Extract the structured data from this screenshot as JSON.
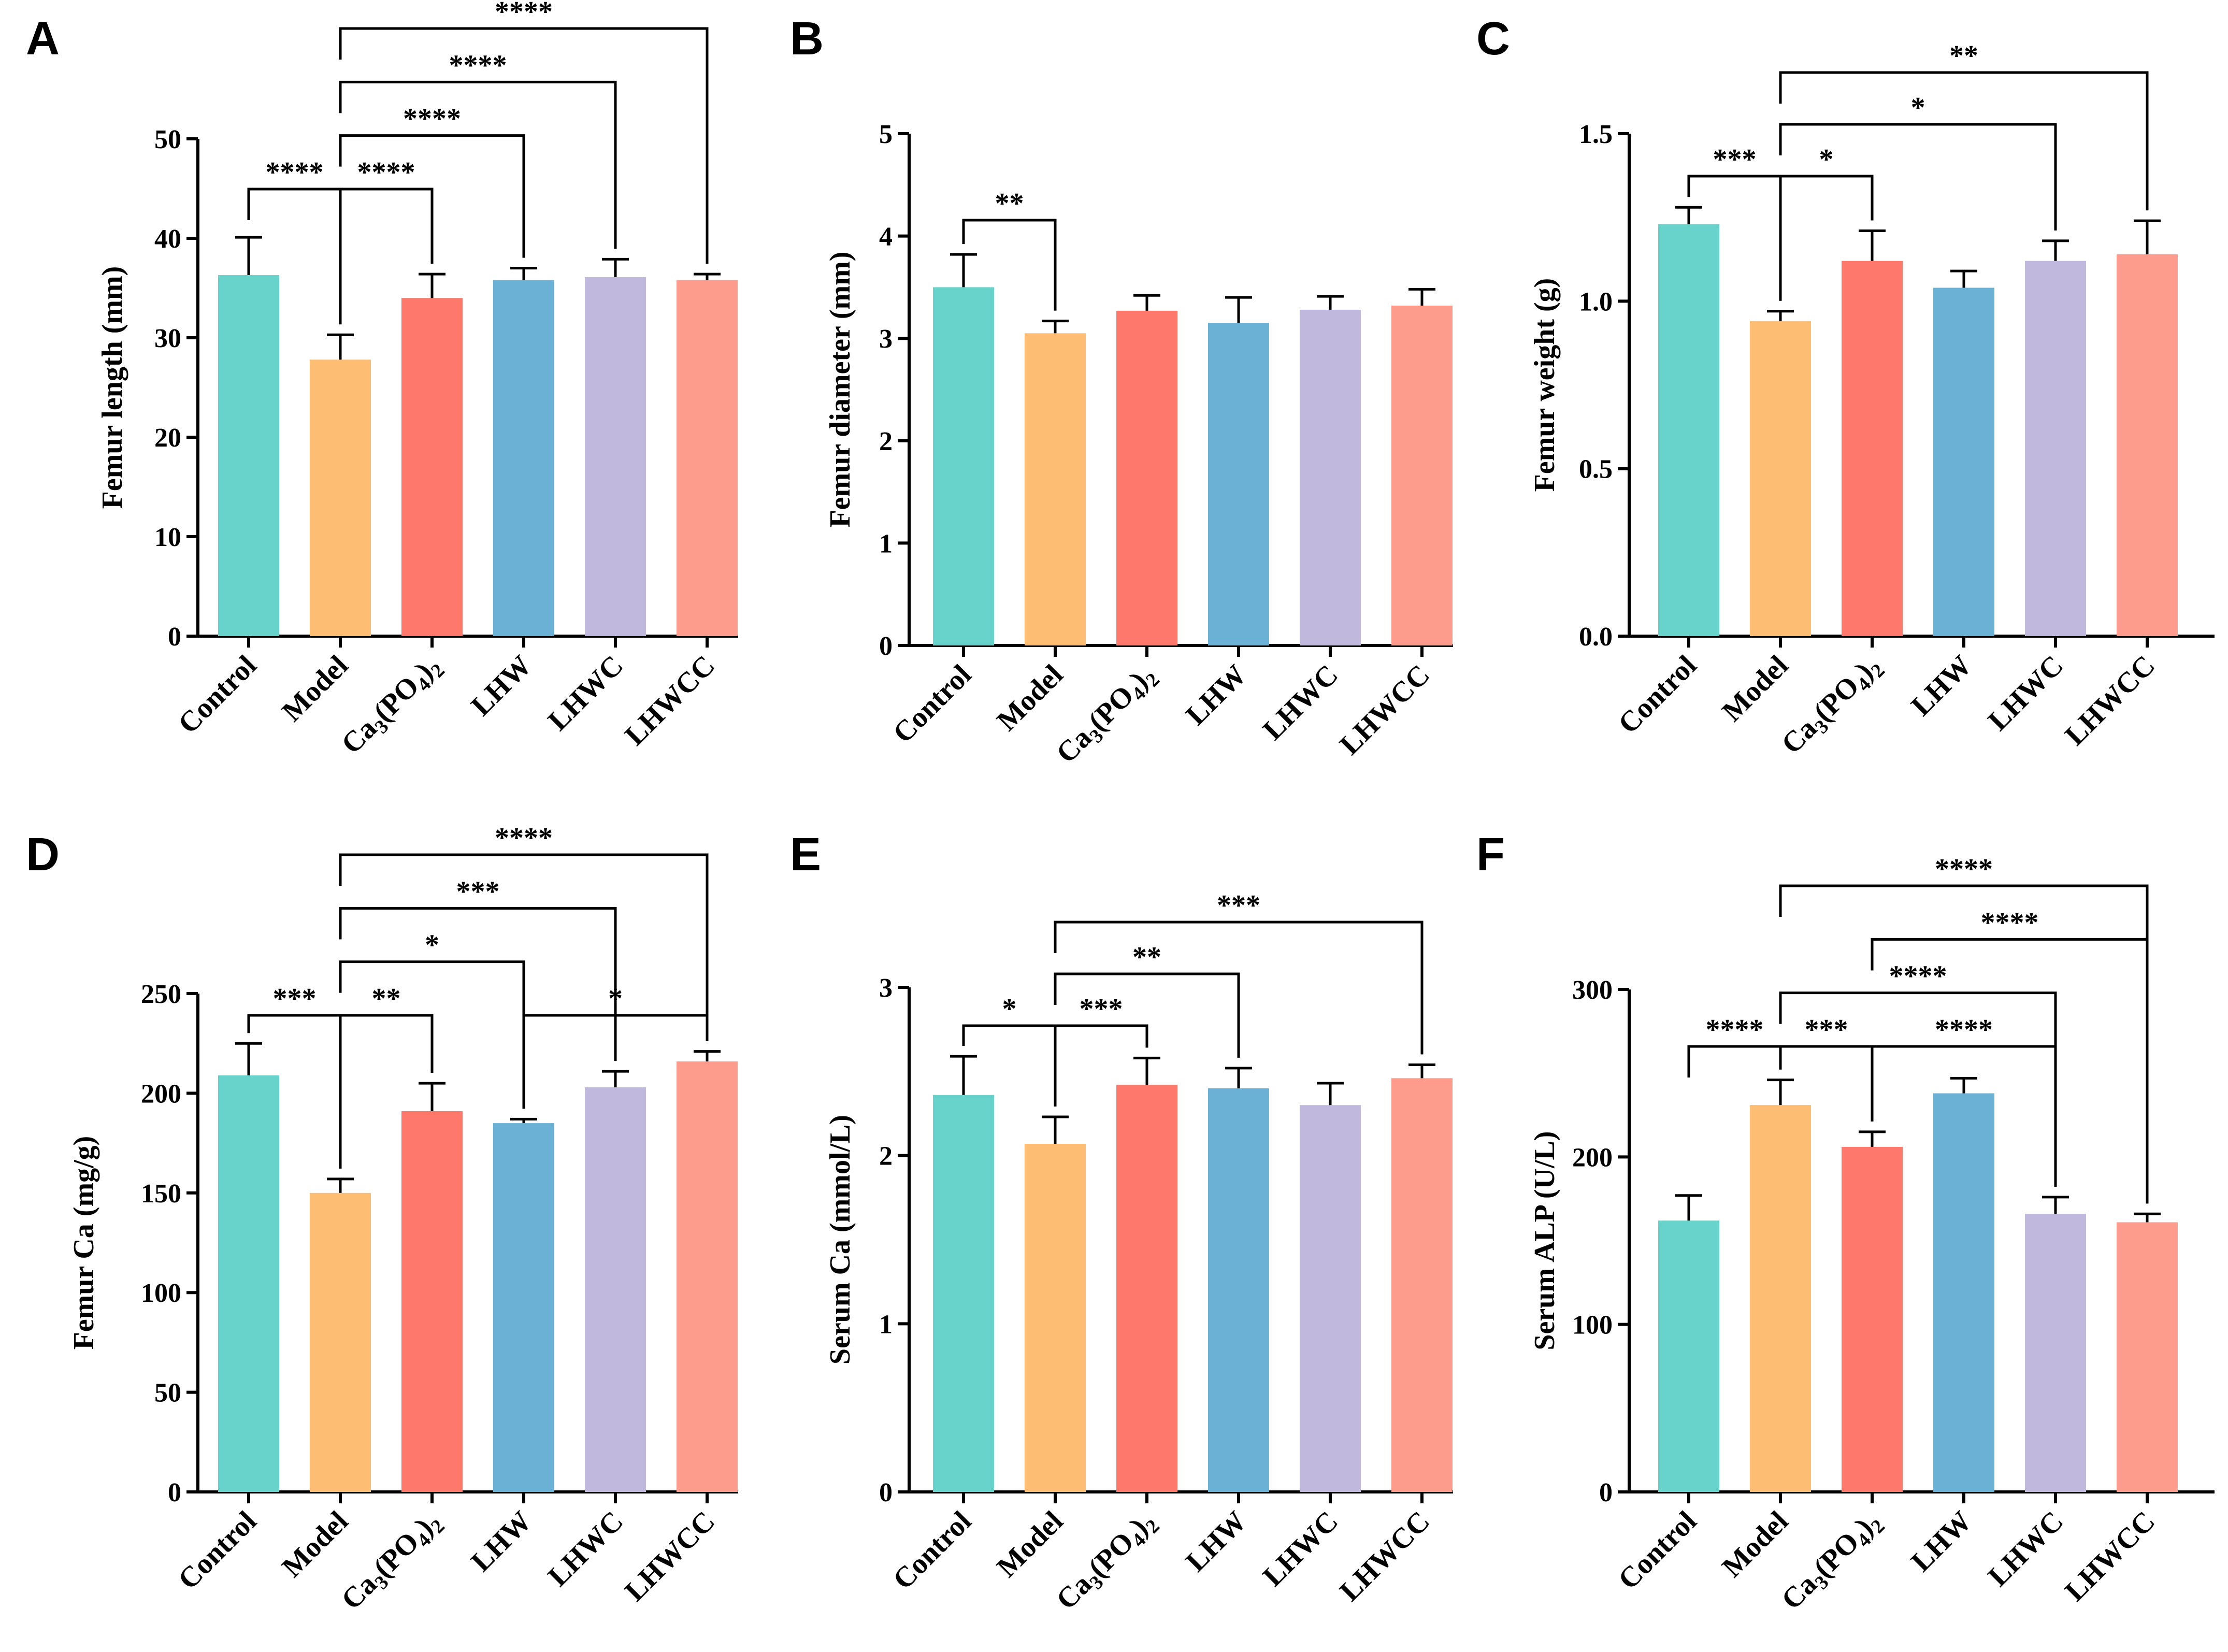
{
  "figure": {
    "layout": "2 rows x 3 columns of bar charts"
  },
  "chart_data": [
    {
      "panel": "A",
      "type": "bar",
      "categories": [
        "Control",
        "Model",
        "Ca3(PO4)2",
        "LHW",
        "LHWC",
        "LHWCC"
      ],
      "values": [
        36.3,
        27.8,
        34.0,
        35.8,
        36.1,
        35.8
      ],
      "errors": [
        3.8,
        2.5,
        2.4,
        1.2,
        1.8,
        0.6
      ],
      "colors": [
        "#68d3cb",
        "#fdbe74",
        "#fe796b",
        "#6ab1d5",
        "#c0b9dd",
        "#fd9b8d"
      ],
      "title": "",
      "xlabel": "",
      "ylabel": "Femur length (mm)",
      "ylim": [
        0,
        50
      ],
      "yticks": [
        0,
        10,
        20,
        30,
        40,
        50
      ],
      "significance": [
        {
          "from": 0,
          "to": 1,
          "label": "****"
        },
        {
          "from": 1,
          "to": 2,
          "label": "****"
        },
        {
          "from": 1,
          "to": 3,
          "label": "****"
        },
        {
          "from": 1,
          "to": 4,
          "label": "****"
        },
        {
          "from": 1,
          "to": 5,
          "label": "****"
        }
      ]
    },
    {
      "panel": "B",
      "type": "bar",
      "categories": [
        "Control",
        "Model",
        "Ca3(PO4)2",
        "LHW",
        "LHWC",
        "LHWCC"
      ],
      "values": [
        3.5,
        3.05,
        3.27,
        3.15,
        3.28,
        3.32
      ],
      "errors": [
        0.32,
        0.12,
        0.15,
        0.25,
        0.13,
        0.16
      ],
      "colors": [
        "#68d3cb",
        "#fdbe74",
        "#fe796b",
        "#6ab1d5",
        "#c0b9dd",
        "#fd9b8d"
      ],
      "title": "",
      "xlabel": "",
      "ylabel": "Femur diameter (mm)",
      "ylim": [
        0,
        5
      ],
      "yticks": [
        0,
        1,
        2,
        3,
        4,
        5
      ],
      "significance": [
        {
          "from": 0,
          "to": 1,
          "label": "**"
        }
      ]
    },
    {
      "panel": "C",
      "type": "bar",
      "categories": [
        "Control",
        "Model",
        "Ca3(PO4)2",
        "LHW",
        "LHWC",
        "LHWCC"
      ],
      "values": [
        1.23,
        0.94,
        1.12,
        1.04,
        1.12,
        1.14
      ],
      "errors": [
        0.05,
        0.03,
        0.09,
        0.05,
        0.06,
        0.1
      ],
      "colors": [
        "#68d3cb",
        "#fdbe74",
        "#fe796b",
        "#6ab1d5",
        "#c0b9dd",
        "#fd9b8d"
      ],
      "title": "",
      "xlabel": "",
      "ylabel": "Femur weight (g)",
      "ylim": [
        0,
        1.5
      ],
      "yticks": [
        0.0,
        0.5,
        1.0,
        1.5
      ],
      "ytick_labels": [
        "0.0",
        "0.5",
        "1.0",
        "1.5"
      ],
      "significance": [
        {
          "from": 0,
          "to": 1,
          "label": "***"
        },
        {
          "from": 1,
          "to": 2,
          "label": "*"
        },
        {
          "from": 1,
          "to": 4,
          "label": "*"
        },
        {
          "from": 1,
          "to": 5,
          "label": "**"
        }
      ]
    },
    {
      "panel": "D",
      "type": "bar",
      "categories": [
        "Control",
        "Model",
        "Ca3(PO4)2",
        "LHW",
        "LHWC",
        "LHWCC"
      ],
      "values": [
        209,
        150,
        191,
        185,
        203,
        216
      ],
      "errors": [
        16,
        7,
        14,
        2,
        8,
        5
      ],
      "colors": [
        "#68d3cb",
        "#fdbe74",
        "#fe796b",
        "#6ab1d5",
        "#c0b9dd",
        "#fd9b8d"
      ],
      "title": "",
      "xlabel": "",
      "ylabel": "Femur Ca (mg/g)",
      "ylim": [
        0,
        250
      ],
      "yticks": [
        0,
        50,
        100,
        150,
        200,
        250
      ],
      "significance": [
        {
          "from": 0,
          "to": 1,
          "label": "***"
        },
        {
          "from": 1,
          "to": 2,
          "label": "**"
        },
        {
          "from": 3,
          "to": 5,
          "label": "*"
        },
        {
          "from": 1,
          "to": 3,
          "label": "*"
        },
        {
          "from": 1,
          "to": 4,
          "label": "***"
        },
        {
          "from": 1,
          "to": 5,
          "label": "****"
        }
      ]
    },
    {
      "panel": "E",
      "type": "bar",
      "categories": [
        "Control",
        "Model",
        "Ca3(PO4)2",
        "LHW",
        "LHWC",
        "LHWCC"
      ],
      "values": [
        2.36,
        2.07,
        2.42,
        2.4,
        2.3,
        2.46
      ],
      "errors": [
        0.23,
        0.16,
        0.16,
        0.12,
        0.13,
        0.08
      ],
      "colors": [
        "#68d3cb",
        "#fdbe74",
        "#fe796b",
        "#6ab1d5",
        "#c0b9dd",
        "#fd9b8d"
      ],
      "title": "",
      "xlabel": "",
      "ylabel": "Serum Ca (mmol/L)",
      "ylim": [
        0,
        3
      ],
      "yticks": [
        0,
        1,
        2,
        3
      ],
      "significance": [
        {
          "from": 0,
          "to": 1,
          "label": "*"
        },
        {
          "from": 1,
          "to": 2,
          "label": "***"
        },
        {
          "from": 1,
          "to": 3,
          "label": "**"
        },
        {
          "from": 1,
          "to": 5,
          "label": "***"
        }
      ]
    },
    {
      "panel": "F",
      "type": "bar",
      "categories": [
        "Control",
        "Model",
        "Ca3(PO4)2",
        "LHW",
        "LHWC",
        "LHWCC"
      ],
      "values": [
        162,
        231,
        206,
        238,
        166,
        161
      ],
      "errors": [
        15,
        15,
        9,
        9,
        10,
        5
      ],
      "colors": [
        "#68d3cb",
        "#fdbe74",
        "#fe796b",
        "#6ab1d5",
        "#c0b9dd",
        "#fd9b8d"
      ],
      "title": "",
      "xlabel": "",
      "ylabel": "Serum ALP (U/L)",
      "ylim": [
        0,
        300
      ],
      "yticks": [
        0,
        100,
        200,
        300
      ],
      "significance": [
        {
          "from": 0,
          "to": 1,
          "label": "****"
        },
        {
          "from": 1,
          "to": 2,
          "label": "***"
        },
        {
          "from": 2,
          "to": 4,
          "label": "****"
        },
        {
          "from": 1,
          "to": 4,
          "label": "****"
        },
        {
          "from": 2,
          "to": 5,
          "label": "****"
        },
        {
          "from": 1,
          "to": 5,
          "label": "****"
        }
      ]
    }
  ]
}
